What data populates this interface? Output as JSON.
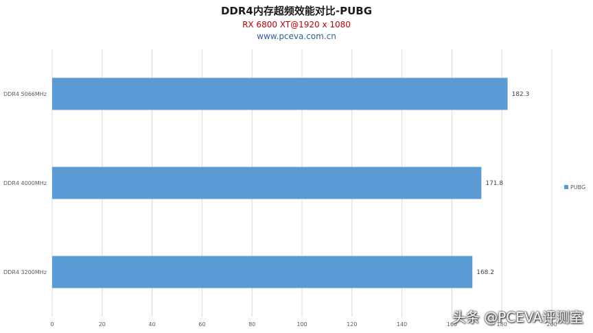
{
  "chart_data": {
    "type": "bar",
    "orientation": "horizontal",
    "title": "DDR4内存超频效能对比-PUBG",
    "subtitle": "RX 6800 XT@1920 x 1080",
    "source": "www.pceva.com.cn",
    "categories": [
      "DDR4 5066MHz",
      "DDR4 4000MHz",
      "DDR4 3200MHz"
    ],
    "series": [
      {
        "name": "PUBG",
        "values": [
          182.3,
          171.8,
          168.2
        ],
        "color": "#5b9bd5"
      }
    ],
    "xlim": [
      0,
      200
    ],
    "xticks": [
      0,
      20,
      40,
      60,
      80,
      100,
      120,
      140,
      160,
      180,
      200
    ],
    "grid": true,
    "legend_position": "right",
    "show_data_labels": true
  },
  "watermark": "头条 @PCEVA评测室",
  "colors": {
    "bar": "#5b9bd5",
    "grid": "#d9d9d9",
    "axis_text": "#595959"
  }
}
